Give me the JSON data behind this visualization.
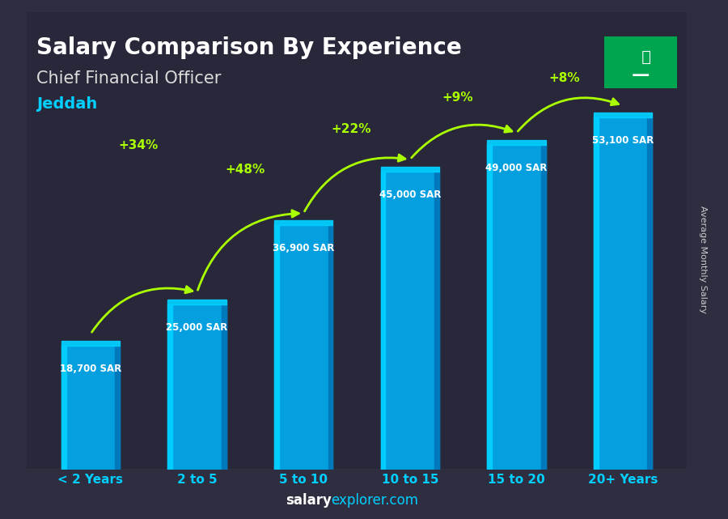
{
  "categories": [
    "< 2 Years",
    "2 to 5",
    "5 to 10",
    "10 to 15",
    "15 to 20",
    "20+ Years"
  ],
  "values": [
    18700,
    25000,
    36900,
    45000,
    49000,
    53100
  ],
  "bar_color_top": "#00cfff",
  "bar_color_mid": "#00aaee",
  "bar_color_side": "#0077bb",
  "salary_labels": [
    "18,700 SAR",
    "25,000 SAR",
    "36,900 SAR",
    "45,000 SAR",
    "49,000 SAR",
    "53,100 SAR"
  ],
  "pct_labels": [
    null,
    "+34%",
    "+48%",
    "+22%",
    "+9%",
    "+8%"
  ],
  "title_line1": "Salary Comparison By Experience",
  "title_line2": "Chief Financial Officer",
  "city": "Jeddah",
  "ylabel": "Average Monthly Salary",
  "footer": "salaryexplorer.com",
  "footer_salary": "salary",
  "footer_explorer": "explorer",
  "max_value": 60000,
  "background_color": "#00000000",
  "bar_alpha": 0.85,
  "arrow_color": "#aaff00",
  "salary_label_color": "#ffffff",
  "title_color": "#ffffff",
  "city_color": "#00cfff",
  "subtitle_color": "#dddddd",
  "xlabel_color": "#00cfff"
}
